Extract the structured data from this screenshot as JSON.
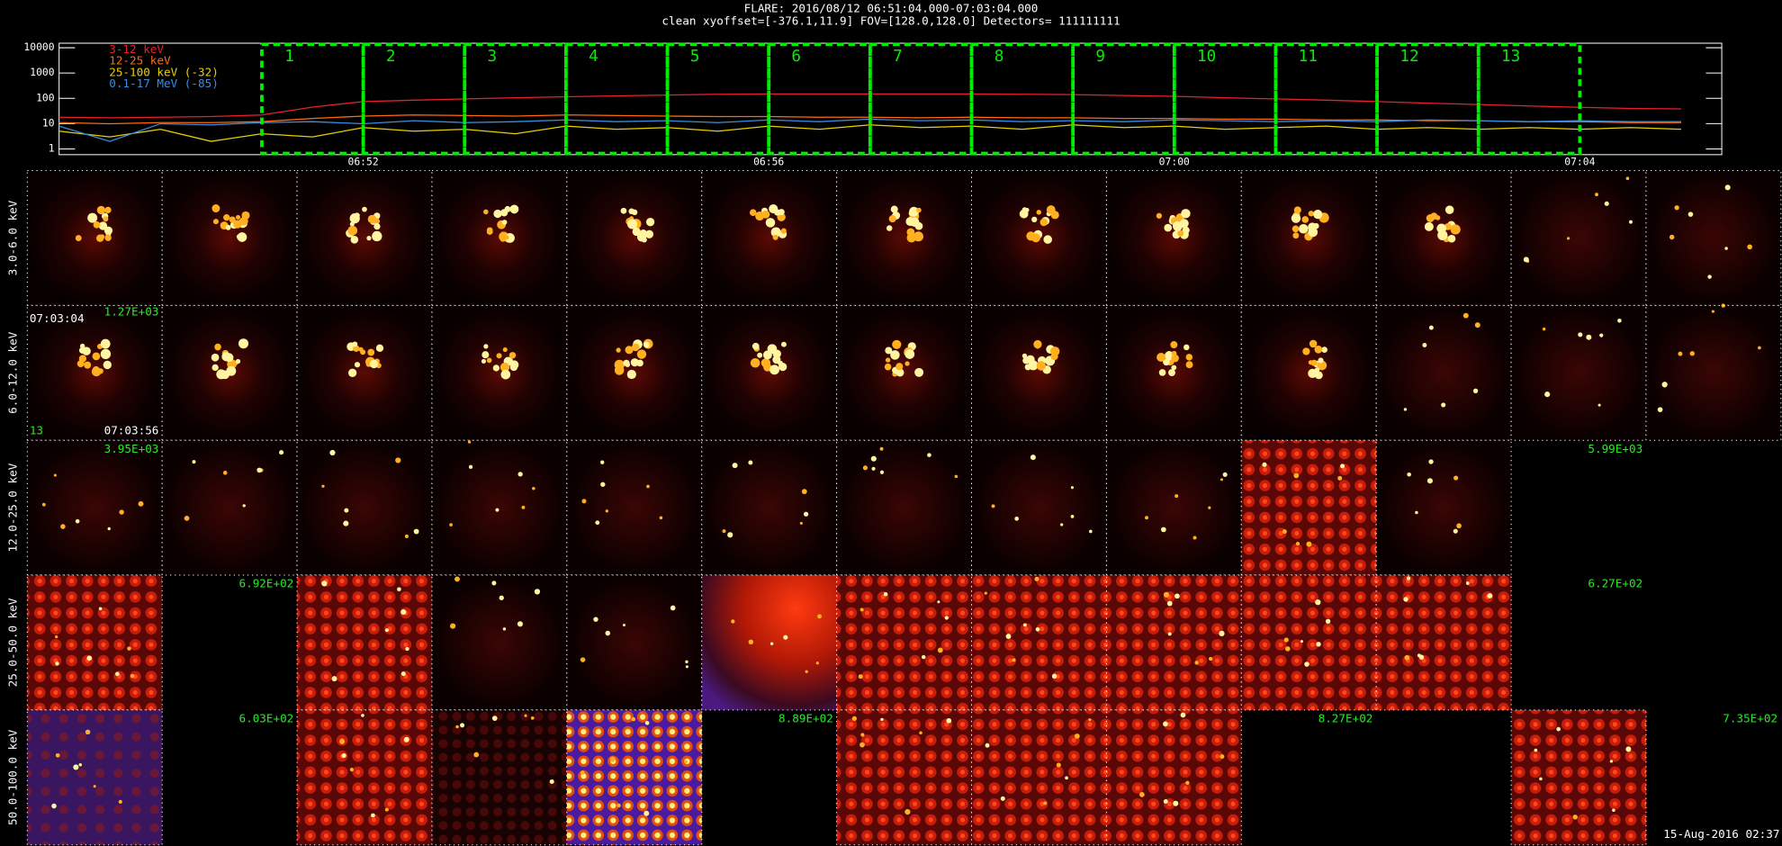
{
  "header": {
    "title": "FLARE: 2016/08/12 06:51:04.000-07:03:04.000",
    "subtitle": "clean   xyoffset=[-376.1,11.9]   FOV=[128.0,128.0]   Detectors= 111111111"
  },
  "chart_data": {
    "type": "line",
    "log_scale": true,
    "x": [
      49,
      49.5,
      50,
      50.5,
      51,
      51.5,
      52,
      52.5,
      53,
      53.5,
      54,
      54.5,
      55,
      55.5,
      56,
      56.5,
      57,
      57.5,
      58,
      58.5,
      59,
      59.5,
      60,
      60.5,
      61,
      61.5,
      62,
      62.5,
      63,
      63.5,
      64,
      64.5,
      65
    ],
    "xlim": [
      49,
      65.4
    ],
    "xticks": [
      {
        "value": 52,
        "label": "06:52"
      },
      {
        "value": 56,
        "label": "06:56"
      },
      {
        "value": 60,
        "label": "07:00"
      },
      {
        "value": 64,
        "label": "07:04"
      }
    ],
    "ylim": [
      1,
      10000
    ],
    "yticks": [
      1,
      10,
      100,
      1000,
      10000
    ],
    "intervals": [
      [
        51,
        52
      ],
      [
        52,
        53
      ],
      [
        53,
        54
      ],
      [
        54,
        55
      ],
      [
        55,
        56
      ],
      [
        56,
        57
      ],
      [
        57,
        58
      ],
      [
        58,
        59
      ],
      [
        59,
        60
      ],
      [
        60,
        61
      ],
      [
        61,
        62
      ],
      [
        62,
        63
      ],
      [
        63,
        64
      ]
    ],
    "interval_labels": [
      "1",
      "2",
      "3",
      "4",
      "5",
      "6",
      "7",
      "8",
      "9",
      "10",
      "11",
      "12",
      "13"
    ],
    "interval_color": "#00ee00",
    "series": [
      {
        "name": "3-12 keV",
        "color": "#e8202a",
        "values": [
          18,
          17,
          18,
          19,
          22,
          45,
          75,
          85,
          95,
          105,
          115,
          125,
          135,
          145,
          150,
          150,
          150,
          150,
          150,
          145,
          140,
          130,
          120,
          105,
          95,
          85,
          75,
          65,
          57,
          50,
          44,
          40,
          38
        ]
      },
      {
        "name": "12-25 keV",
        "color": "#ff6a10",
        "values": [
          11,
          10,
          11,
          11,
          12,
          16,
          20,
          22,
          21,
          20,
          22,
          21,
          20,
          19,
          19,
          18,
          18,
          17,
          18,
          17,
          17,
          16,
          16,
          15,
          15,
          14,
          14,
          13,
          13,
          12,
          12,
          11,
          11
        ]
      },
      {
        "name": "25-100 keV (-32)",
        "color": "#e8d000",
        "values": [
          5,
          3,
          6,
          2,
          4,
          3,
          7,
          5,
          6,
          4,
          8,
          6,
          7,
          5,
          8,
          6,
          9,
          7,
          8,
          6,
          9,
          7,
          8,
          6,
          7,
          8,
          6,
          7,
          6,
          7,
          6,
          7,
          6
        ]
      },
      {
        "name": "0.1-17 MeV (-85)",
        "color": "#3a8ee0",
        "values": [
          8,
          2,
          10,
          9,
          11,
          12,
          10,
          13,
          11,
          12,
          14,
          12,
          13,
          11,
          14,
          12,
          15,
          13,
          14,
          12,
          13,
          12,
          14,
          13,
          12,
          13,
          12,
          14,
          13,
          12,
          13,
          12,
          12
        ]
      }
    ]
  },
  "image_grid": {
    "rows": [
      {
        "label": "3.0-6.0 keV",
        "peaks": []
      },
      {
        "label": "6.0-12.0 keV",
        "peaks": [],
        "overlay": {
          "start_time": "07:03:04",
          "peak": "1.27E+03",
          "interval": "13",
          "end_time": "07:03:56"
        }
      },
      {
        "label": "12.0-25.0 keV",
        "peaks": [
          "3.95E+03",
          "5.99E+03"
        ]
      },
      {
        "label": "25.0-50.0 keV",
        "peaks": [
          "6.92E+02",
          "6.27E+02"
        ]
      },
      {
        "label": "50.0-100.0 keV",
        "peaks": [
          "6.03E+02",
          "8.89E+02",
          "8.27E+02",
          "7.35E+02"
        ]
      }
    ],
    "timestamp": "15-Aug-2016 02:37"
  }
}
